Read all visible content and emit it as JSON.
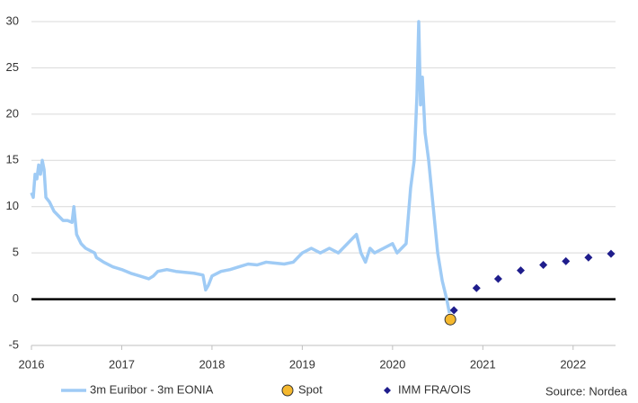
{
  "chart_data": {
    "type": "line",
    "xlim": [
      2016,
      2022.47
    ],
    "ylim": [
      -5,
      30
    ],
    "xticks": [
      2016,
      2017,
      2018,
      2019,
      2020,
      2021,
      2022
    ],
    "yticks": [
      -5,
      0,
      5,
      10,
      15,
      20,
      25,
      30
    ],
    "grid": true,
    "source": "Source: Nordea",
    "series": [
      {
        "name": "3m Euribor - 3m EONIA",
        "color": "#9fcbf5",
        "marker": "none",
        "x": [
          2016.0,
          2016.02,
          2016.04,
          2016.06,
          2016.08,
          2016.1,
          2016.12,
          2016.14,
          2016.16,
          2016.2,
          2016.25,
          2016.3,
          2016.35,
          2016.4,
          2016.45,
          2016.47,
          2016.5,
          2016.55,
          2016.6,
          2016.7,
          2016.72,
          2016.8,
          2016.9,
          2017.0,
          2017.1,
          2017.2,
          2017.3,
          2017.35,
          2017.4,
          2017.5,
          2017.6,
          2017.7,
          2017.8,
          2017.9,
          2017.93,
          2017.96,
          2018.0,
          2018.1,
          2018.2,
          2018.3,
          2018.4,
          2018.5,
          2018.6,
          2018.7,
          2018.8,
          2018.9,
          2019.0,
          2019.1,
          2019.2,
          2019.3,
          2019.4,
          2019.5,
          2019.6,
          2019.65,
          2019.7,
          2019.75,
          2019.8,
          2019.9,
          2020.0,
          2020.05,
          2020.1,
          2020.15,
          2020.2,
          2020.24,
          2020.27,
          2020.29,
          2020.31,
          2020.33,
          2020.36,
          2020.4,
          2020.45,
          2020.5,
          2020.55,
          2020.6,
          2020.63
        ],
        "values": [
          11.5,
          11,
          13.5,
          13,
          14.5,
          13.5,
          15,
          14,
          11,
          10.5,
          9.5,
          9,
          8.5,
          8.5,
          8.3,
          10,
          7,
          6,
          5.5,
          5,
          4.5,
          4,
          3.5,
          3.2,
          2.8,
          2.5,
          2.2,
          2.5,
          3,
          3.2,
          3,
          2.9,
          2.8,
          2.6,
          1,
          1.5,
          2.5,
          3,
          3.2,
          3.5,
          3.8,
          3.7,
          4,
          3.9,
          3.8,
          4,
          5,
          5.5,
          5,
          5.5,
          5,
          6,
          7,
          5,
          4,
          5.5,
          5,
          5.5,
          6,
          5,
          5.5,
          6,
          12,
          15,
          22,
          30,
          21,
          24,
          18,
          15,
          10,
          5,
          2,
          0,
          -1.5
        ]
      },
      {
        "name": "Spot",
        "color": "#f5b82e",
        "marker": "circle",
        "x": [
          2020.64
        ],
        "values": [
          -2.2
        ]
      },
      {
        "name": "IMM FRA/OIS",
        "color": "#1f1d8c",
        "marker": "diamond",
        "x": [
          2020.68,
          2020.93,
          2021.17,
          2021.42,
          2021.67,
          2021.92,
          2022.17,
          2022.42
        ],
        "values": [
          -1.2,
          1.2,
          2.2,
          3.1,
          3.7,
          4.1,
          4.5,
          4.9
        ]
      }
    ]
  }
}
